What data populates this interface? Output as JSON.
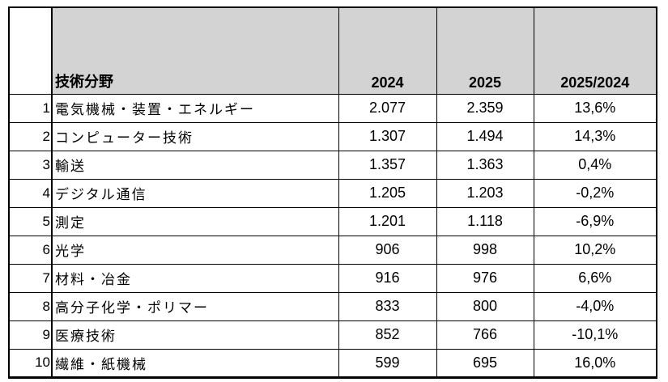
{
  "chart_data": {
    "type": "table",
    "title": "",
    "columns": [
      "",
      "技術分野",
      "2024",
      "2025",
      "2025/2024"
    ],
    "rows": [
      [
        "1",
        "電気機械・装置・エネルギー",
        "2.077",
        "2.359",
        "13,6%"
      ],
      [
        "2",
        "コンピューター技術",
        "1.307",
        "1.494",
        "14,3%"
      ],
      [
        "3",
        "輸送",
        "1.357",
        "1.363",
        "0,4%"
      ],
      [
        "4",
        "デジタル通信",
        "1.205",
        "1.203",
        "-0,2%"
      ],
      [
        "5",
        "測定",
        "1.201",
        "1.118",
        "-6,9%"
      ],
      [
        "6",
        "光学",
        "906",
        "998",
        "10,2%"
      ],
      [
        "7",
        "材料・冶金",
        "916",
        "976",
        "6,6%"
      ],
      [
        "8",
        "高分子化学・ポリマー",
        "833",
        "800",
        "-4,0%"
      ],
      [
        "9",
        "医療技術",
        "852",
        "766",
        "-10,1%"
      ],
      [
        "10",
        "繊維・紙機械",
        "599",
        "695",
        "16,0%"
      ]
    ],
    "styles": {
      "header_bg": "#d3d3d3",
      "border_color": "#000000",
      "background": "#ffffff"
    },
    "layout": {
      "grid": "on",
      "number_format": "European (period thousands separator, comma decimal)"
    }
  }
}
